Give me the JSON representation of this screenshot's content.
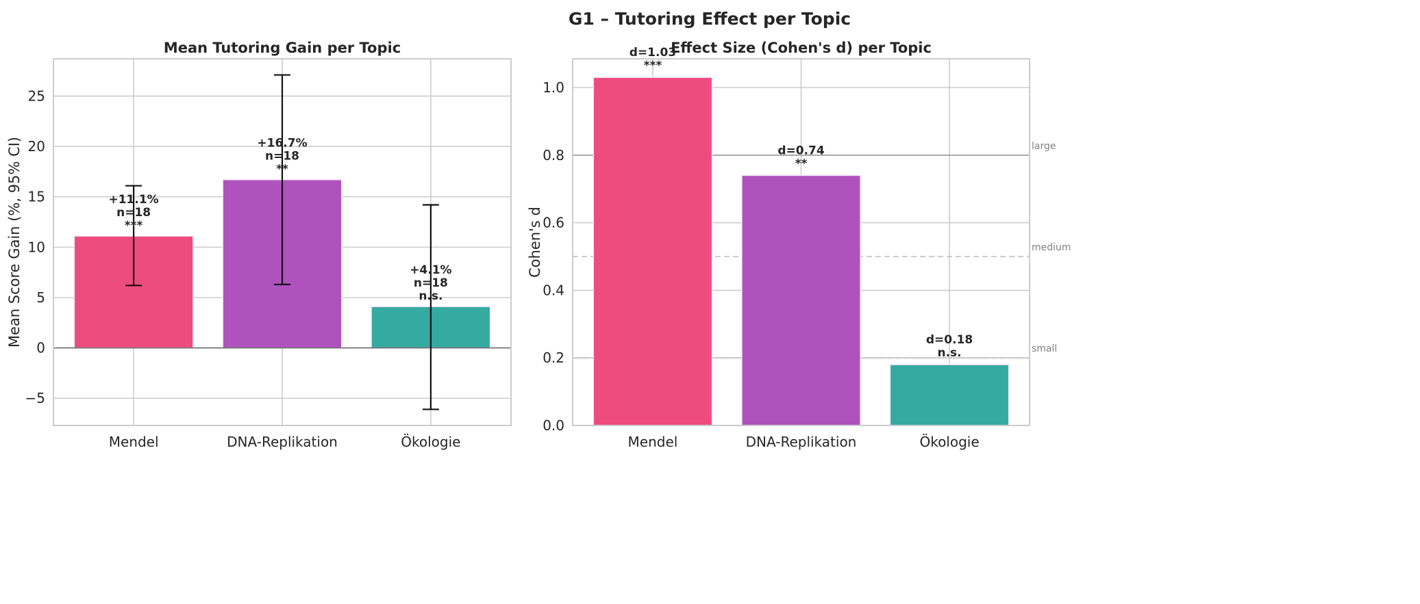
{
  "suptitle": "G1 – Tutoring Effect per Topic",
  "chart_data": [
    {
      "type": "bar",
      "title": "Mean Tutoring Gain per Topic",
      "xlabel": "",
      "ylabel": "Mean Score Gain (%, 95% CI)",
      "categories": [
        "Mendel",
        "DNA-Replikation",
        "Ökologie"
      ],
      "values": [
        11.1,
        16.7,
        4.1
      ],
      "ci_low": [
        6.2,
        6.3,
        -6.1
      ],
      "ci_high": [
        16.1,
        27.1,
        14.2
      ],
      "annotations": [
        [
          "+11.1%",
          "n=18",
          "***"
        ],
        [
          "+16.7%",
          "n=18",
          "**"
        ],
        [
          "+4.1%",
          "n=18",
          "n.s."
        ]
      ],
      "colors": [
        "#ee4b7f",
        "#af52be",
        "#34aaa1"
      ],
      "ylim": [
        -7.7,
        28.7
      ],
      "yticks": [
        -5,
        0,
        5,
        10,
        15,
        20,
        25
      ],
      "ytick_labels": [
        "−5",
        "0",
        "5",
        "10",
        "15",
        "20",
        "25"
      ],
      "grid": true
    },
    {
      "type": "bar",
      "title": "Effect Size (Cohen's d) per Topic",
      "xlabel": "",
      "ylabel": "Cohen's d",
      "categories": [
        "Mendel",
        "DNA-Replikation",
        "Ökologie"
      ],
      "values": [
        1.03,
        0.74,
        0.18
      ],
      "annotations": [
        [
          "d=1.03",
          "***"
        ],
        [
          "d=0.74",
          "**"
        ],
        [
          "d=0.18",
          "n.s."
        ]
      ],
      "colors": [
        "#ee4b7f",
        "#af52be",
        "#34aaa1"
      ],
      "ylim": [
        0,
        1.085
      ],
      "yticks": [
        0.0,
        0.2,
        0.4,
        0.6,
        0.8,
        1.0
      ],
      "ytick_labels": [
        "0.0",
        "0.2",
        "0.4",
        "0.6",
        "0.8",
        "1.0"
      ],
      "reference_lines": [
        {
          "value": 0.8,
          "label": "large",
          "style": "solid"
        },
        {
          "value": 0.5,
          "label": "medium",
          "style": "dashed"
        },
        {
          "value": 0.2,
          "label": "small",
          "style": "dotted"
        }
      ],
      "grid": true
    }
  ]
}
